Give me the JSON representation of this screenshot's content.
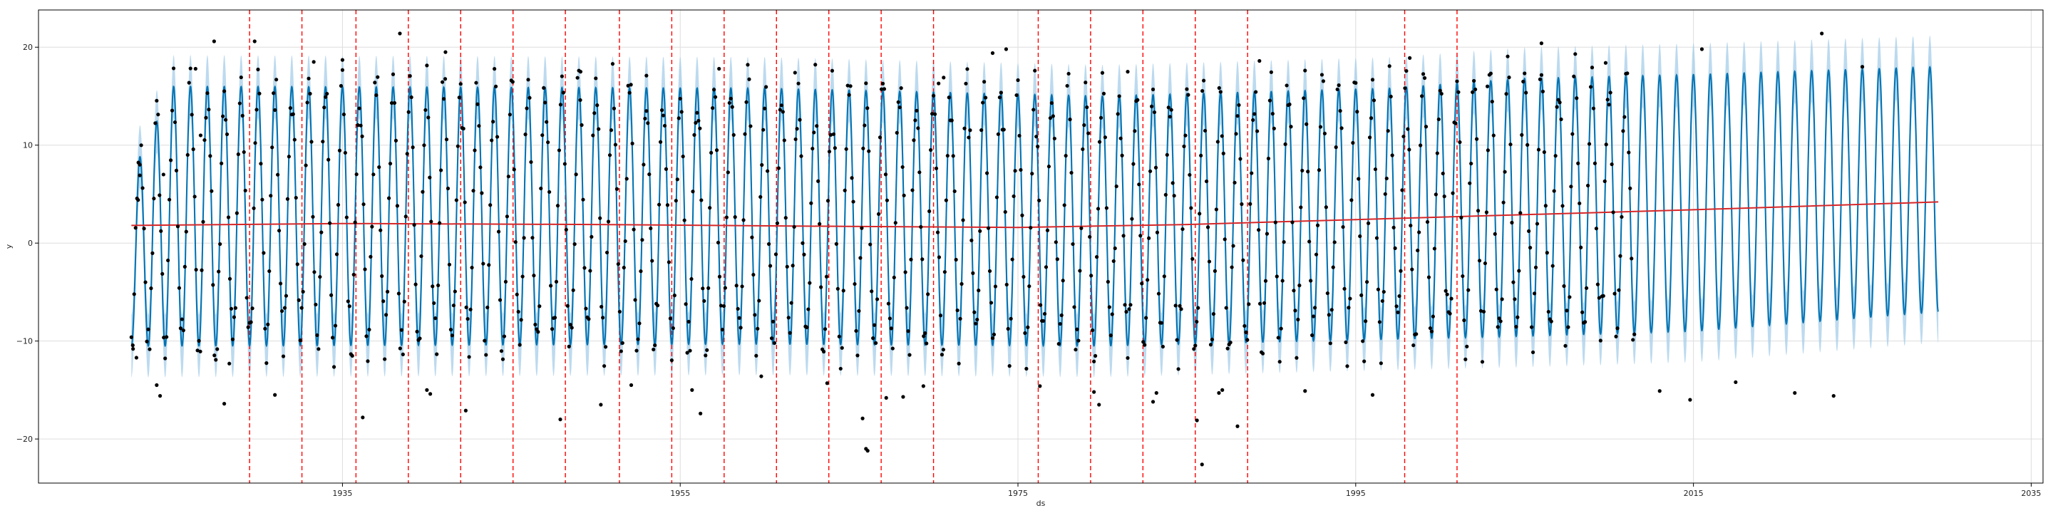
{
  "chart_data": {
    "type": "line",
    "title": "",
    "xlabel": "ds",
    "ylabel": "y",
    "xlim": [
      1917.0,
      2035.7
    ],
    "ylim": [
      -24.5,
      23.8
    ],
    "x_ticks": [
      1935,
      1955,
      1975,
      1995,
      2015,
      2035
    ],
    "x_tick_labels": [
      "1935",
      "1955",
      "1975",
      "1995",
      "2015",
      "2035"
    ],
    "y_ticks": [
      -20,
      -10,
      0,
      10,
      20
    ],
    "y_tick_labels": [
      "−20",
      "−10",
      "0",
      "10",
      "20"
    ],
    "grid": true,
    "legend": "none",
    "colors": {
      "forecast": "#0072B2",
      "uncertainty": "#A6CDEA",
      "observed": "#000000",
      "trend": "#D62728",
      "changepoint": "#FF0000",
      "grid": "#DDDDDD"
    },
    "observed_range": [
      1922.5,
      2011.5
    ],
    "forecast_range": [
      1922.5,
      2029.5
    ],
    "seasonal_period_years": 1,
    "series": [
      {
        "role": "trend",
        "x": [
          1922.5,
          1935.0,
          1950.0,
          1965.0,
          1975.0,
          1985.0,
          1995.0,
          2005.0,
          2015.0,
          2029.5
        ],
        "values": [
          1.8,
          2.0,
          1.9,
          1.7,
          1.6,
          1.9,
          2.4,
          2.9,
          3.4,
          4.2
        ]
      },
      {
        "role": "seasonal-amplitude",
        "x": [
          1922.5,
          1925.0,
          1960.0,
          1980.0,
          1997.0,
          2005.0,
          2015.0,
          2029.5
        ],
        "upper": [
          7.0,
          16.0,
          15.8,
          15.0,
          15.8,
          16.8,
          17.2,
          18.0
        ],
        "lower": [
          -10.5,
          -10.5,
          -10.3,
          -10.5,
          -9.8,
          -9.5,
          -9.0,
          -7.0
        ]
      }
    ],
    "uncertainty_half_width": 3.2,
    "changepoints": [
      1929.5,
      1932.6,
      1935.8,
      1938.9,
      1942.0,
      1945.1,
      1948.2,
      1951.4,
      1954.5,
      1957.6,
      1960.7,
      1963.8,
      1966.9,
      1970.0,
      1976.2,
      1979.3,
      1982.4,
      1985.5,
      1988.6,
      1997.9,
      2001.0
    ],
    "observed_points": [
      {
        "x": 1922.6,
        "y": -10.8
      },
      {
        "x": 1922.8,
        "y": -11.7
      },
      {
        "x": 1922.9,
        "y": 4.4
      },
      {
        "x": 1923.0,
        "y": 8.0
      },
      {
        "x": 1924.0,
        "y": -14.5
      },
      {
        "x": 1924.2,
        "y": -15.6
      },
      {
        "x": 1924.4,
        "y": 7.0
      },
      {
        "x": 1926.3,
        "y": 17.8
      },
      {
        "x": 1926.6,
        "y": 11.0
      },
      {
        "x": 1927.4,
        "y": 20.6
      },
      {
        "x": 1928.0,
        "y": -16.4
      },
      {
        "x": 1928.3,
        "y": -12.3
      },
      {
        "x": 1929.8,
        "y": 20.6
      },
      {
        "x": 1931.0,
        "y": -15.5
      },
      {
        "x": 1933.3,
        "y": 18.5
      },
      {
        "x": 1935.0,
        "y": 18.7
      },
      {
        "x": 1936.2,
        "y": -17.8
      },
      {
        "x": 1938.4,
        "y": 21.4
      },
      {
        "x": 1940.0,
        "y": -15.0
      },
      {
        "x": 1940.2,
        "y": -15.4
      },
      {
        "x": 1941.1,
        "y": 19.5
      },
      {
        "x": 1942.3,
        "y": -17.1
      },
      {
        "x": 1947.9,
        "y": -18.0
      },
      {
        "x": 1949.1,
        "y": 17.5
      },
      {
        "x": 1950.3,
        "y": -16.5
      },
      {
        "x": 1952.1,
        "y": -14.5
      },
      {
        "x": 1953.0,
        "y": 17.1
      },
      {
        "x": 1955.7,
        "y": -15.0
      },
      {
        "x": 1956.2,
        "y": -17.4
      },
      {
        "x": 1957.3,
        "y": 17.8
      },
      {
        "x": 1959.8,
        "y": -13.6
      },
      {
        "x": 1961.8,
        "y": 17.4
      },
      {
        "x": 1963.7,
        "y": -14.3
      },
      {
        "x": 1965.8,
        "y": -17.9
      },
      {
        "x": 1966.0,
        "y": -21.0
      },
      {
        "x": 1966.1,
        "y": -21.2
      },
      {
        "x": 1967.2,
        "y": -15.8
      },
      {
        "x": 1968.2,
        "y": -15.7
      },
      {
        "x": 1969.4,
        "y": -14.6
      },
      {
        "x": 1970.3,
        "y": 16.3
      },
      {
        "x": 1970.6,
        "y": 16.9
      },
      {
        "x": 1973.5,
        "y": 19.4
      },
      {
        "x": 1974.3,
        "y": 19.8
      },
      {
        "x": 1976.3,
        "y": -14.6
      },
      {
        "x": 1979.5,
        "y": -15.2
      },
      {
        "x": 1979.8,
        "y": -16.5
      },
      {
        "x": 1981.5,
        "y": 17.5
      },
      {
        "x": 1983.0,
        "y": -16.2
      },
      {
        "x": 1983.2,
        "y": -15.3
      },
      {
        "x": 1985.6,
        "y": -18.1
      },
      {
        "x": 1985.9,
        "y": -22.6
      },
      {
        "x": 1986.9,
        "y": -15.3
      },
      {
        "x": 1987.1,
        "y": -15.0
      },
      {
        "x": 1988.0,
        "y": -18.7
      },
      {
        "x": 1989.3,
        "y": 18.6
      },
      {
        "x": 1992.0,
        "y": -15.1
      },
      {
        "x": 1996.0,
        "y": -15.5
      },
      {
        "x": 1998.2,
        "y": 18.9
      },
      {
        "x": 2002.8,
        "y": 16.0
      },
      {
        "x": 2006.0,
        "y": 20.4
      },
      {
        "x": 2009.8,
        "y": 18.4
      },
      {
        "x": 2013.0,
        "y": -15.1
      },
      {
        "x": 2014.8,
        "y": -16.0
      },
      {
        "x": 2015.5,
        "y": 19.8
      },
      {
        "x": 2017.5,
        "y": -14.2
      },
      {
        "x": 2021.0,
        "y": -15.3
      },
      {
        "x": 2022.6,
        "y": 21.4
      },
      {
        "x": 2023.3,
        "y": -15.6
      },
      {
        "x": 2025.0,
        "y": 18.0
      }
    ]
  }
}
